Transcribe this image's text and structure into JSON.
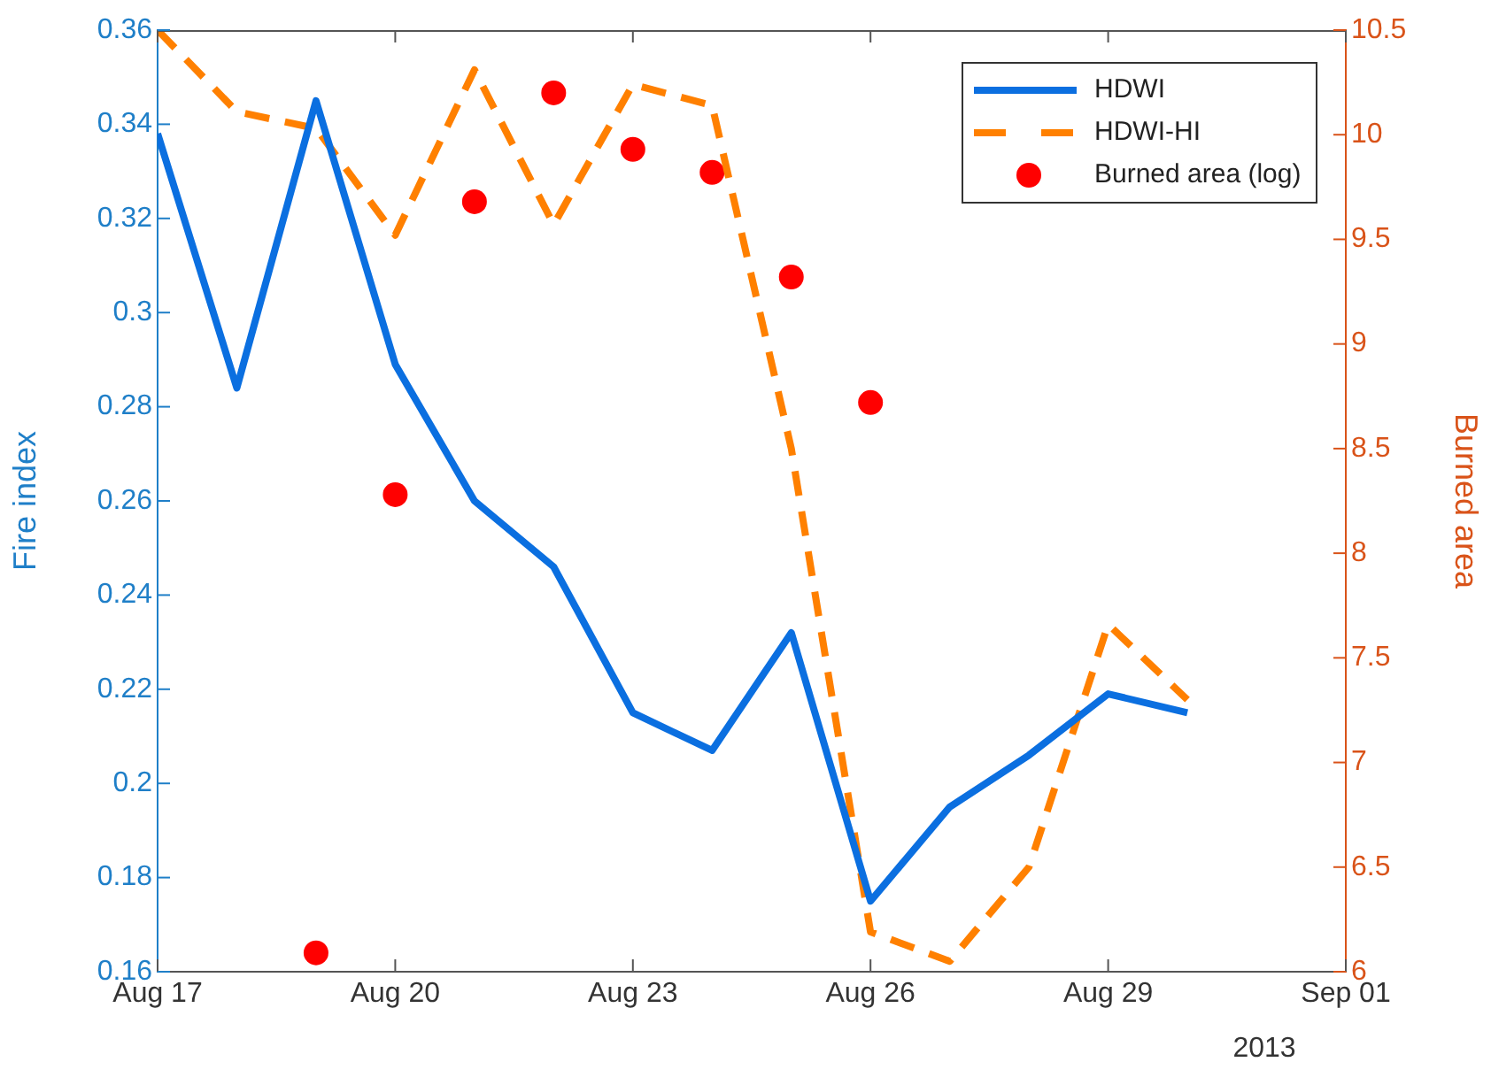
{
  "chart_data": {
    "type": "line",
    "ylabel": "Fire index",
    "y2label": "Burned area",
    "annotations": [
      "2013"
    ],
    "x": [
      "2013-08-17",
      "2013-08-18",
      "2013-08-19",
      "2013-08-20",
      "2013-08-21",
      "2013-08-22",
      "2013-08-23",
      "2013-08-24",
      "2013-08-25",
      "2013-08-26",
      "2013-08-27",
      "2013-08-28",
      "2013-08-29",
      "2013-08-30"
    ],
    "xlim": [
      "2013-08-17",
      "2013-09-01"
    ],
    "xticks": [
      {
        "value": "2013-08-17",
        "label": "Aug 17"
      },
      {
        "value": "2013-08-20",
        "label": "Aug 20"
      },
      {
        "value": "2013-08-23",
        "label": "Aug 23"
      },
      {
        "value": "2013-08-26",
        "label": "Aug 26"
      },
      {
        "value": "2013-08-29",
        "label": "Aug 29"
      },
      {
        "value": "2013-09-01",
        "label": "Sep 01"
      }
    ],
    "ylim": [
      0.16,
      0.36
    ],
    "yticks": [
      0.16,
      0.18,
      0.2,
      0.22,
      0.24,
      0.26,
      0.28,
      0.3,
      0.32,
      0.34,
      0.36
    ],
    "y2lim": [
      6,
      10.5
    ],
    "y2ticks": [
      6,
      6.5,
      7,
      7.5,
      8,
      8.5,
      9,
      9.5,
      10,
      10.5
    ],
    "grid": false,
    "legend": "top right",
    "series": [
      {
        "name": "HDWI",
        "color": "#0b6fe0",
        "line_style": "solid",
        "marker": "none",
        "values": [
          0.338,
          0.284,
          0.345,
          0.289,
          0.26,
          0.246,
          0.215,
          0.207,
          0.232,
          0.175,
          0.195,
          0.206,
          0.219,
          0.215
        ]
      },
      {
        "name": "HDWI-HI",
        "axis": "y2",
        "color": "#ff8000",
        "line_style": "dashed",
        "marker": "none",
        "values": [
          10.5,
          10.11,
          10.03,
          9.52,
          10.31,
          9.57,
          10.24,
          10.14,
          8.5,
          6.19,
          6.05,
          6.5,
          7.66,
          7.3
        ]
      },
      {
        "name": "Burned area (log)",
        "type": "scatter",
        "axis": "y2",
        "color": "#ff0000",
        "marker": "circle",
        "values": [
          null,
          null,
          6.09,
          8.28,
          9.68,
          10.2,
          9.93,
          9.82,
          9.32,
          8.72,
          null,
          null,
          null,
          null
        ]
      }
    ]
  }
}
